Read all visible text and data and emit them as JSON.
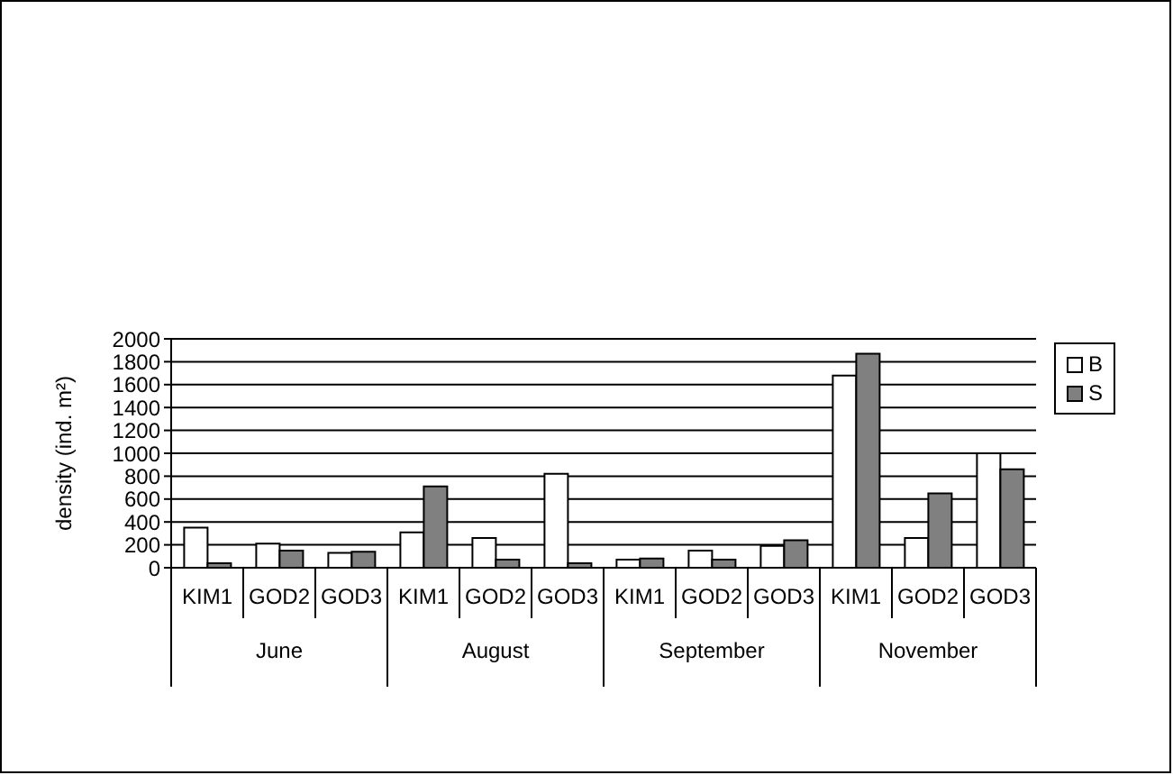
{
  "chart_data": {
    "type": "bar",
    "ylabel": "density (ind. m²)",
    "categories": [
      "KIM1",
      "GOD2",
      "GOD3",
      "KIM1",
      "GOD2",
      "GOD3",
      "KIM1",
      "GOD2",
      "GOD3",
      "KIM1",
      "GOD2",
      "GOD3"
    ],
    "annotations": [
      "June",
      "August",
      "September",
      "November"
    ],
    "series": [
      {
        "name": "B",
        "color": "#ffffff",
        "values": [
          350,
          210,
          130,
          310,
          260,
          820,
          70,
          150,
          190,
          1680,
          260,
          1000
        ]
      },
      {
        "name": "S",
        "color": "#808080",
        "values": [
          40,
          150,
          140,
          710,
          70,
          40,
          80,
          70,
          240,
          1870,
          650,
          860
        ]
      }
    ],
    "ylim": [
      0,
      2000
    ],
    "yticks": [
      0,
      200,
      400,
      600,
      800,
      1000,
      1200,
      1400,
      1600,
      1800,
      2000
    ],
    "grid": "y",
    "legend": "right"
  }
}
